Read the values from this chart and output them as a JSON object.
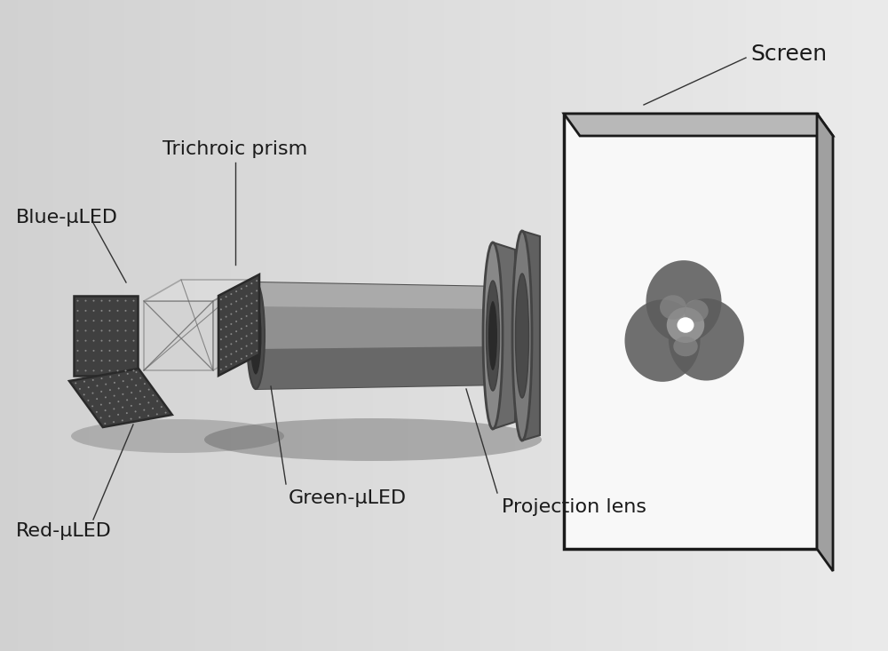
{
  "bg_color": "#d8d8d8",
  "labels": {
    "screen": "Screen",
    "trichroic_prism": "Trichroic prism",
    "blue_led": "Blue-μLED",
    "red_led": "Red-μLED",
    "green_led": "Green-μLED",
    "projection_lens": "Projection lens"
  },
  "font_sizes": {
    "label": 15
  }
}
